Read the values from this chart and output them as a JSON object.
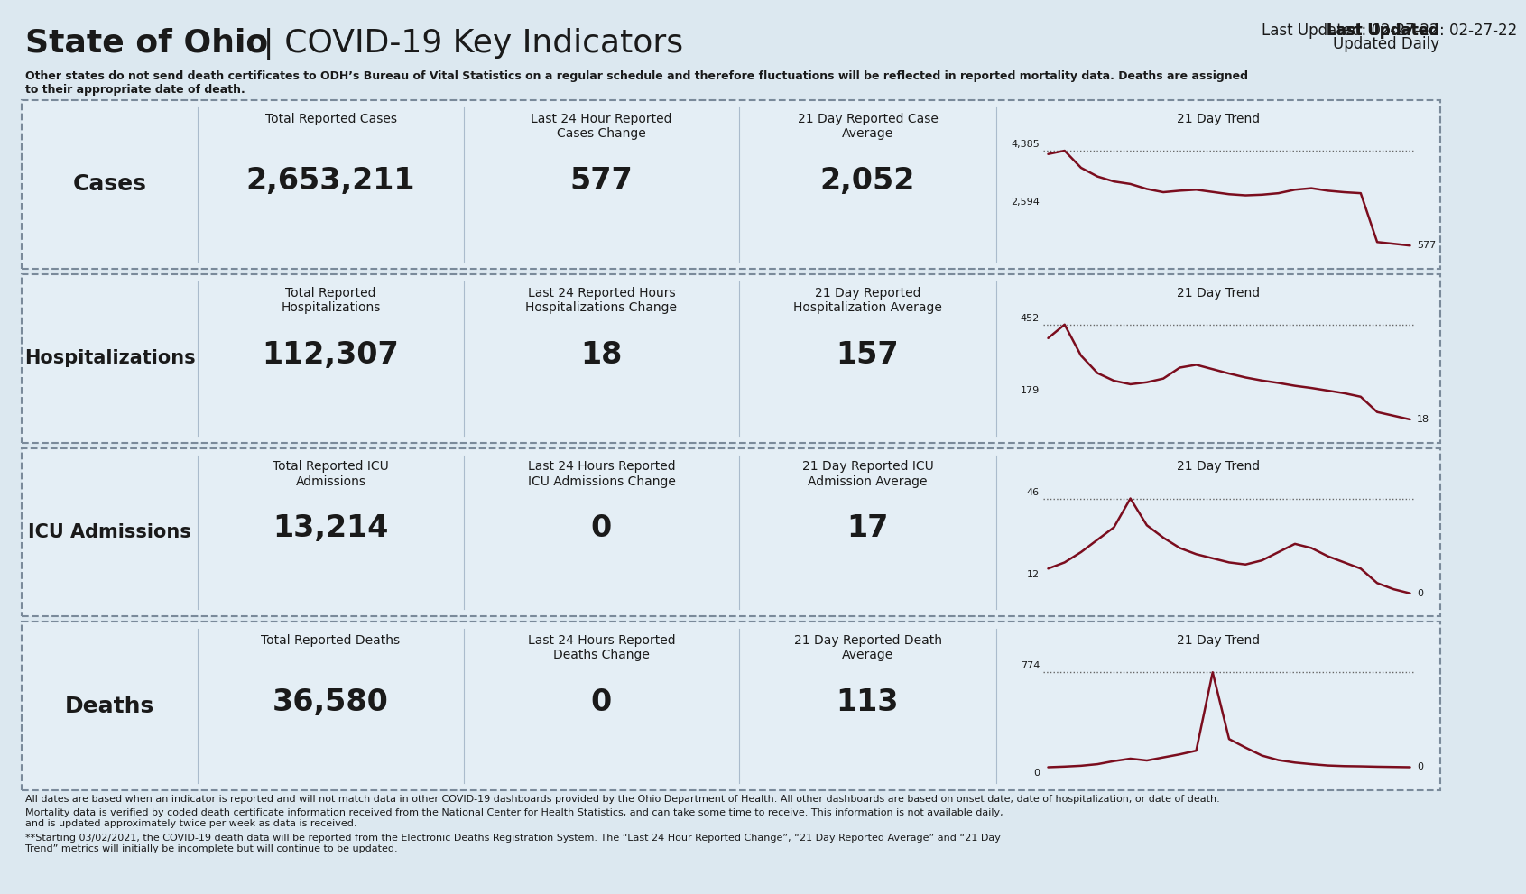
{
  "bg_color": "#dce8f0",
  "box_bg": "#e4eef5",
  "line_color": "#7b0d1e",
  "border_color": "#7a8a9a",
  "divider_color": "#aabbcc",
  "text_color": "#1a1a1a",
  "title_bold": "State of Ohio",
  "title_pipe": " | ",
  "title_normal": "COVID-19 Key Indicators",
  "last_updated_bold": "Last Updated",
  "last_updated_value": ": 02-27-22",
  "updated_daily": "Updated Daily",
  "disclaimer": "Other states do not send death certificates to ODH’s Bureau of Vital Statistics on a regular schedule and therefore fluctuations will be reflected in reported mortality data. Deaths are assigned\nto their appropriate date of death.",
  "footer": [
    "All dates are based when an indicator is reported and will not match data in other COVID-19 dashboards provided by the Ohio Department of Health. All other dashboards are based on onset date, date of hospitalization, or date of death.",
    "Mortality data is verified by coded death certificate information received from the National Center for Health Statistics, and can take some time to receive. This information is not available daily,\nand is updated approximately twice per week as data is received.",
    "**Starting 03/02/2021, the COVID-19 death data will be reported from the Electronic Deaths Registration System. The “Last 24 Hour Reported Change”, “21 Day Reported Average” and “21 Day\nTrend” metrics will initially be incomplete but will continue to be updated."
  ],
  "rows": [
    {
      "label": "Cases",
      "label_size": 18,
      "c1_pre": "Total Reported ",
      "c1_bold": "Cases",
      "c1_post": "",
      "c1_val": "2,653,211",
      "c2_line1": "Last 24 Hour Reported",
      "c2_bold": "Cases",
      "c2_post": " Change",
      "c2_val": "577",
      "c3_line1": "21 Day Reported ",
      "c3_bold": "Case",
      "c3_post": "\nAverage",
      "c3_val": "2,052",
      "t_max": 4385,
      "t_lo": 2594,
      "t_last": 577,
      "t_data": [
        4250,
        4385,
        3700,
        3350,
        3150,
        3050,
        2850,
        2720,
        2780,
        2820,
        2730,
        2640,
        2594,
        2620,
        2680,
        2820,
        2880,
        2780,
        2720,
        2680,
        720,
        650,
        577
      ]
    },
    {
      "label": "Hospitalizations",
      "label_size": 15,
      "c1_pre": "Total Reported\n",
      "c1_bold": "Hospitalizations",
      "c1_post": "",
      "c1_val": "112,307",
      "c2_line1": "Last 24 Reported Hours",
      "c2_bold": "Hospitalizations",
      "c2_post": " Change",
      "c2_val": "18",
      "c3_line1": "21 Day Reported\n",
      "c3_bold": "Hospitalization",
      "c3_post": " Average",
      "c3_val": "157",
      "t_max": 452,
      "t_lo": 179,
      "t_last": 18,
      "t_data": [
        390,
        452,
        310,
        230,
        195,
        179,
        188,
        205,
        255,
        268,
        248,
        228,
        210,
        196,
        185,
        172,
        162,
        150,
        138,
        122,
        52,
        35,
        18
      ]
    },
    {
      "label": "ICU Admissions",
      "label_size": 15,
      "c1_pre": "Total Reported ",
      "c1_bold": "ICU\nAdmissions",
      "c1_post": "",
      "c1_val": "13,214",
      "c2_line1": "Last 24 Hours Reported",
      "c2_bold": "ICU Admissions",
      "c2_post": " Change",
      "c2_val": "0",
      "c3_line1": "21 Day Reported ",
      "c3_bold": "ICU\nAdmission",
      "c3_post": " Average",
      "c3_val": "17",
      "t_max": 46,
      "t_lo": 12,
      "t_last": 0,
      "t_data": [
        12,
        15,
        20,
        26,
        32,
        46,
        33,
        27,
        22,
        19,
        17,
        15,
        14,
        16,
        20,
        24,
        22,
        18,
        15,
        12,
        5,
        2,
        0
      ]
    },
    {
      "label": "Deaths",
      "label_size": 18,
      "c1_pre": "Total Reported ",
      "c1_bold": "Deaths",
      "c1_post": "",
      "c1_val": "36,580",
      "c2_line1": "Last 24 Hours Reported",
      "c2_bold": "Deaths",
      "c2_post": " Change",
      "c2_val": "0",
      "c3_line1": "21 Day Reported ",
      "c3_bold": "Death\nAverage",
      "c3_post": "",
      "c3_val": "113",
      "t_max": 774,
      "t_lo": 0,
      "t_last": 0,
      "t_data": [
        0,
        5,
        12,
        25,
        50,
        70,
        55,
        80,
        105,
        135,
        774,
        230,
        160,
        95,
        58,
        38,
        25,
        14,
        9,
        7,
        4,
        2,
        0
      ]
    }
  ]
}
